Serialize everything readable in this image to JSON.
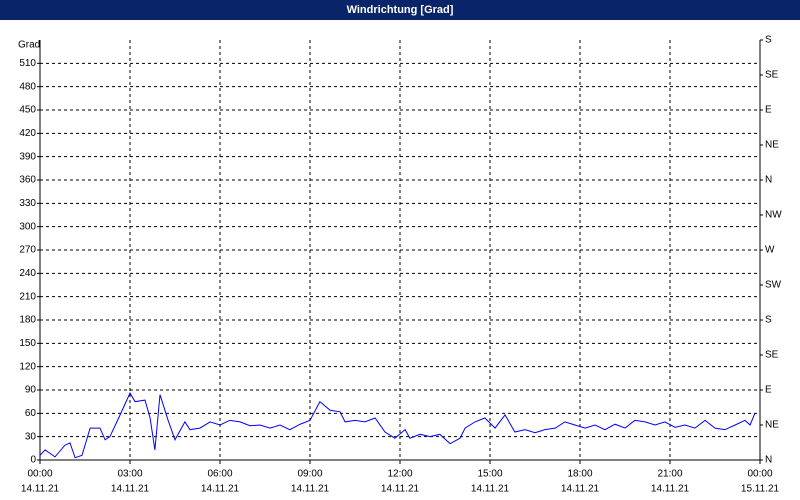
{
  "chart_data": {
    "type": "line",
    "title": "Windrichtung [Grad]",
    "y_label": "Grad",
    "color": "#0000ff",
    "grid": true,
    "xlim": [
      0,
      24
    ],
    "ylim": [
      0,
      540
    ],
    "y2lim": [
      0,
      540
    ],
    "xticks": [
      {
        "value": 0,
        "label": "00:00",
        "date": "14.11.21"
      },
      {
        "value": 3,
        "label": "03:00",
        "date": "14.11.21"
      },
      {
        "value": 6,
        "label": "06:00",
        "date": "14.11.21"
      },
      {
        "value": 9,
        "label": "09:00",
        "date": "14.11.21"
      },
      {
        "value": 12,
        "label": "12:00",
        "date": "14.11.21"
      },
      {
        "value": 15,
        "label": "15:00",
        "date": "14.11.21"
      },
      {
        "value": 18,
        "label": "18:00",
        "date": "14.11.21"
      },
      {
        "value": 21,
        "label": "21:00",
        "date": "14.11.21"
      },
      {
        "value": 24,
        "label": "00:00",
        "date": "15.11.21"
      }
    ],
    "yticks": [
      0,
      30,
      60,
      90,
      120,
      150,
      180,
      210,
      240,
      270,
      300,
      330,
      360,
      390,
      420,
      450,
      480,
      510
    ],
    "y2ticks": [
      {
        "value": 0,
        "label": "N"
      },
      {
        "value": 45,
        "label": "NE"
      },
      {
        "value": 90,
        "label": "E"
      },
      {
        "value": 135,
        "label": "SE"
      },
      {
        "value": 180,
        "label": "S"
      },
      {
        "value": 225,
        "label": "SW"
      },
      {
        "value": 270,
        "label": "W"
      },
      {
        "value": 315,
        "label": "NW"
      },
      {
        "value": 360,
        "label": "N"
      },
      {
        "value": 405,
        "label": "NE"
      },
      {
        "value": 450,
        "label": "E"
      },
      {
        "value": 495,
        "label": "SE"
      },
      {
        "value": 540,
        "label": "S"
      }
    ],
    "x": [
      0,
      0.17,
      0.5,
      0.83,
      1,
      1.17,
      1.4,
      1.67,
      2,
      2.17,
      2.33,
      2.67,
      3,
      3.17,
      3.5,
      3.67,
      3.83,
      4,
      4.27,
      4.5,
      4.83,
      5,
      5.33,
      5.67,
      6,
      6.33,
      6.67,
      7,
      7.33,
      7.67,
      8,
      8.33,
      8.67,
      9,
      9.33,
      9.67,
      10,
      10.17,
      10.5,
      10.83,
      11.17,
      11.5,
      11.83,
      12.17,
      12.33,
      12.67,
      13,
      13.33,
      13.67,
      14,
      14.17,
      14.5,
      14.83,
      15.17,
      15.5,
      15.83,
      16.17,
      16.5,
      16.83,
      17.17,
      17.5,
      17.83,
      18.17,
      18.5,
      18.83,
      19.17,
      19.5,
      19.83,
      20.17,
      20.5,
      20.83,
      21.17,
      21.5,
      21.83,
      22.17,
      22.5,
      22.83,
      23.17,
      23.5,
      23.67,
      23.83
    ],
    "values": [
      6,
      13,
      4,
      19,
      22,
      3,
      6,
      41,
      41,
      26,
      30,
      58,
      86,
      75,
      77,
      54,
      13,
      84,
      51,
      26,
      49,
      39,
      41,
      49,
      45,
      51,
      49,
      44,
      45,
      41,
      45,
      39,
      46,
      51,
      75,
      64,
      62,
      49,
      51,
      49,
      54,
      36,
      28,
      39,
      28,
      33,
      30,
      33,
      21,
      28,
      41,
      49,
      54,
      41,
      58,
      36,
      39,
      35,
      39,
      41,
      49,
      45,
      41,
      45,
      39,
      46,
      41,
      51,
      49,
      45,
      49,
      42,
      45,
      41,
      51,
      41,
      39,
      45,
      51,
      45,
      60
    ]
  }
}
